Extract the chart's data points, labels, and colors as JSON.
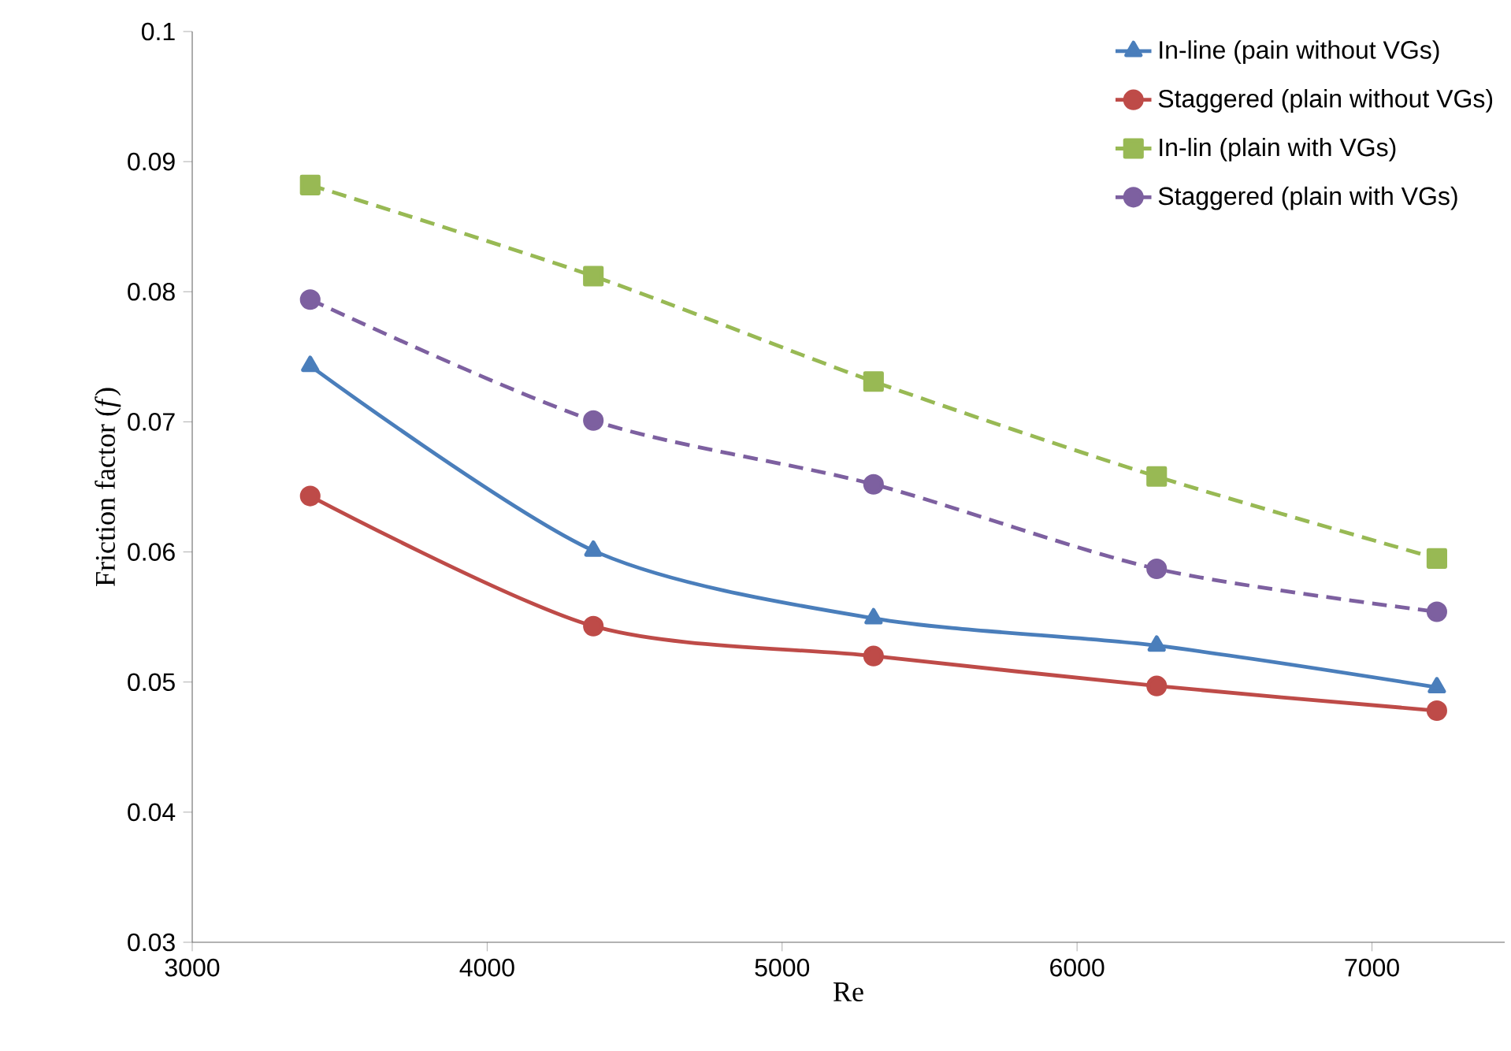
{
  "chart_data": {
    "type": "line",
    "xlabel": "Re",
    "ylabel": "Friction factor (*f*)",
    "x": [
      3400,
      4360,
      5310,
      6270,
      7220
    ],
    "series": [
      {
        "name": "In-line (pain without VGs)",
        "color": "#4a7ebb",
        "marker": "triangle",
        "line_style": "solid",
        "values": [
          0.0743,
          0.0601,
          0.0549,
          0.0528,
          0.0496
        ]
      },
      {
        "name": "Staggered (plain without VGs)",
        "color": "#be4b48",
        "marker": "circle",
        "line_style": "solid",
        "values": [
          0.0643,
          0.0543,
          0.052,
          0.0497,
          0.0478
        ]
      },
      {
        "name": "In-lin (plain with VGs)",
        "color": "#98b954",
        "marker": "square",
        "line_style": "dashed",
        "values": [
          0.0882,
          0.0812,
          0.0731,
          0.0658,
          0.0595
        ]
      },
      {
        "name": "Staggered (plain with VGs)",
        "color": "#7d60a0",
        "marker": "circle",
        "line_style": "dashed",
        "values": [
          0.0794,
          0.0701,
          0.0652,
          0.0587,
          0.0554
        ]
      }
    ],
    "xlim": [
      3000,
      7450
    ],
    "xticks": [
      3000,
      4000,
      5000,
      6000,
      7000
    ],
    "ylim": [
      0.03,
      0.1
    ],
    "yticks": [
      0.03,
      0.04,
      0.05,
      0.06,
      0.07,
      0.08,
      0.09,
      0.1
    ],
    "grid": false,
    "legend": "top right"
  }
}
